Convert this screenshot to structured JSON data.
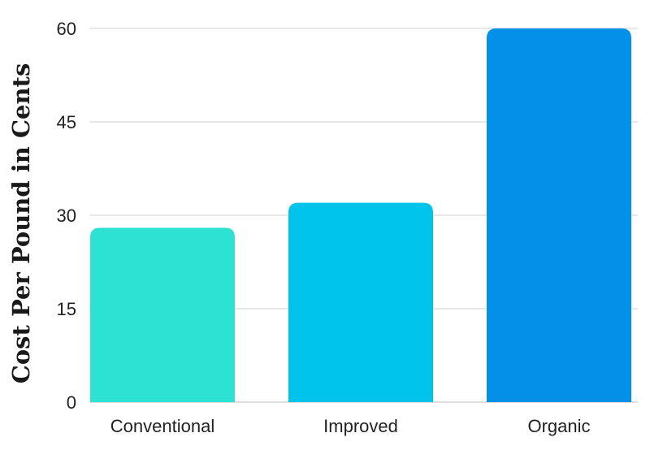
{
  "chart_data": {
    "type": "bar",
    "title": "",
    "xlabel": "",
    "ylabel": "Cost Per Pound in Cents",
    "categories": [
      "Conventional",
      "Improved",
      "Organic"
    ],
    "values": [
      28,
      32,
      60
    ],
    "colors": [
      "#2de2d3",
      "#00c3ec",
      "#0290e9"
    ],
    "ylim": [
      0,
      60
    ],
    "yticks": [
      0,
      15,
      30,
      45,
      60
    ],
    "grid": true,
    "legend": "none"
  }
}
